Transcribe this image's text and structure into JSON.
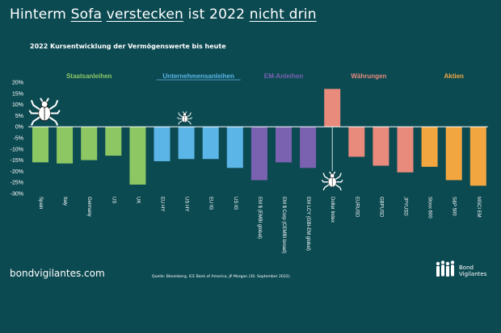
{
  "page": {
    "title_part1": "Hinterm",
    "title_part2": "Sofa",
    "title_part3": "verstecken",
    "title_part4": "ist 2022",
    "title_part5": "nicht drin",
    "subtitle": "2022 Kursentwicklung der Vermögenswerte bis heute",
    "website": "bondvigilantes.com",
    "source": "Quelle: Bloomberg, ICE Bank of America, JP Morgan (30. September 2022).",
    "logo_line1": "Bond",
    "logo_line2": "Vigilantes"
  },
  "colors": {
    "background": "#0c4a52",
    "Staatsanleihen": "#8cc763",
    "Unternehmensanleihen": "#5bb5e6",
    "EM-Anleihen": "#7a62b0",
    "Währungen": "#e88a7c",
    "Aktien": "#f2a640"
  },
  "icons": [
    "bug-icon-spain",
    "bug-icon-ushy",
    "bug-icon-dollar"
  ],
  "chart_data": {
    "type": "bar",
    "title": "2022 Kursentwicklung der Vermögenswerte bis heute",
    "ylim": [
      -30,
      20
    ],
    "yticks": [
      20,
      15,
      10,
      5,
      0,
      -5,
      -10,
      -15,
      -20,
      -25,
      -30
    ],
    "ytick_labels": [
      "20%",
      "15%",
      "10%",
      "5%",
      "0%",
      "-5%",
      "-10%",
      "-15%",
      "-20%",
      "-25%",
      "-30%"
    ],
    "grid": false,
    "groups": [
      {
        "name": "Staatsanleihen",
        "categories": [
          "Spain",
          "Italy",
          "Germany",
          "US",
          "UK"
        ],
        "values": [
          -16,
          -16.5,
          -15,
          -13,
          -26
        ]
      },
      {
        "name": "Unternehmensanleihen",
        "categories": [
          "EU HY",
          "US HY",
          "EU IG",
          "US IG"
        ],
        "values": [
          -15.5,
          -14.5,
          -14.5,
          -18.5
        ]
      },
      {
        "name": "EM-Anleihen",
        "categories": [
          "EM $ (EMBI global)",
          "EM $ Corp (CEMBI broad)",
          "EM LCY (GBI-EM global)"
        ],
        "values": [
          -24,
          -16,
          -18.5
        ]
      },
      {
        "name": "Währungen",
        "categories": [
          "Dollar Index",
          "EURUSD",
          "GBPUSD",
          "JPYUSD"
        ],
        "values": [
          17,
          -13.5,
          -17.5,
          -20.5
        ]
      },
      {
        "name": "Aktien",
        "categories": [
          "Stoxx 600",
          "S&P 500",
          "MSCI EM"
        ],
        "values": [
          -18,
          -24,
          -26.5
        ]
      }
    ]
  }
}
